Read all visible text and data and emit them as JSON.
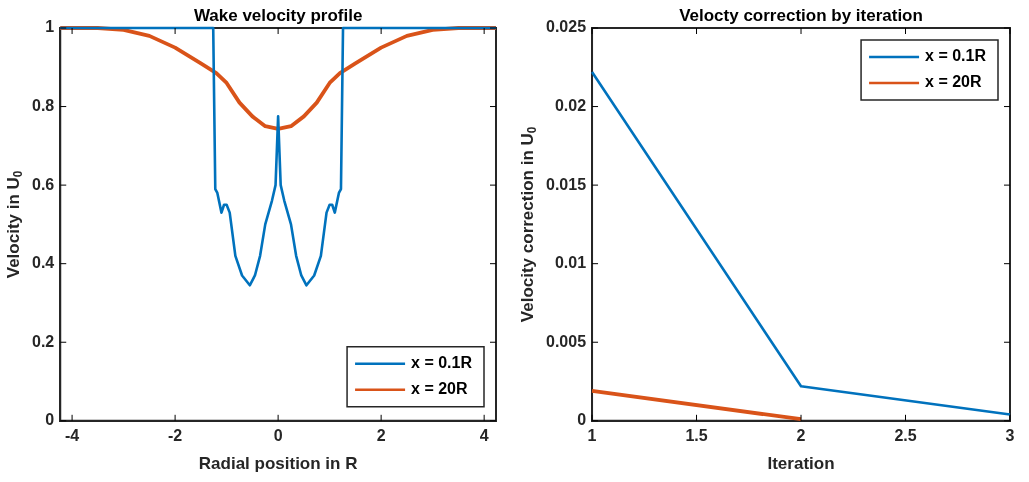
{
  "chart_data": [
    {
      "type": "line",
      "title": "Wake velocity profile",
      "xlabel": "Radial position in R",
      "ylabel": "Velocity in U$_{0}$",
      "xlim": [
        -4.23,
        4.23
      ],
      "xticks": [
        -4,
        -2,
        0,
        2,
        4
      ],
      "ylim": [
        0,
        1
      ],
      "yticks": [
        0,
        0.2,
        0.4,
        0.6,
        0.8,
        1
      ],
      "legend": "bottom right",
      "series": [
        {
          "name": "x = 0.1R",
          "color": "#0072bd",
          "x": [
            -4.23,
            -1.26,
            -1.22,
            -1.18,
            -1.1,
            -1.05,
            -1.0,
            -0.94,
            -0.83,
            -0.7,
            -0.55,
            -0.45,
            -0.35,
            -0.25,
            -0.12,
            -0.05,
            0,
            0.05,
            0.12,
            0.25,
            0.35,
            0.45,
            0.55,
            0.7,
            0.83,
            0.94,
            1.0,
            1.05,
            1.1,
            1.18,
            1.22,
            1.26,
            4.23
          ],
          "values": [
            1,
            1,
            0.59,
            0.58,
            0.53,
            0.55,
            0.55,
            0.53,
            0.42,
            0.37,
            0.345,
            0.37,
            0.42,
            0.5,
            0.56,
            0.6,
            0.775,
            0.6,
            0.56,
            0.5,
            0.42,
            0.37,
            0.345,
            0.37,
            0.42,
            0.53,
            0.55,
            0.55,
            0.53,
            0.58,
            0.59,
            1,
            1
          ]
        },
        {
          "name": "x = 20R",
          "color": "#d95319",
          "x": [
            -4.23,
            -3.5,
            -3,
            -2.5,
            -2,
            -1.5,
            -1.2,
            -1,
            -0.75,
            -0.5,
            -0.25,
            0,
            0.25,
            0.5,
            0.75,
            1,
            1.2,
            1.5,
            2,
            2.5,
            3,
            3.5,
            4.23
          ],
          "values": [
            1,
            1,
            0.995,
            0.98,
            0.95,
            0.91,
            0.885,
            0.86,
            0.81,
            0.775,
            0.75,
            0.743,
            0.75,
            0.775,
            0.81,
            0.86,
            0.885,
            0.91,
            0.95,
            0.98,
            0.995,
            1,
            1
          ]
        }
      ]
    },
    {
      "type": "line",
      "title": "Velocty correction by iteration",
      "xlabel": "Iteration",
      "ylabel": "Velocity correction in U$_{0}$",
      "xlim": [
        1,
        3
      ],
      "xticks": [
        1,
        1.5,
        2,
        2.5,
        3
      ],
      "ylim": [
        0,
        0.025
      ],
      "yticks": [
        0,
        0.005,
        0.01,
        0.015,
        0.02,
        0.025
      ],
      "legend": "top right",
      "series": [
        {
          "name": "x = 0.1R",
          "color": "#0072bd",
          "x": [
            1,
            2,
            3
          ],
          "values": [
            0.0222,
            0.0022,
            0.0004
          ]
        },
        {
          "name": "x = 20R",
          "color": "#d95319",
          "x": [
            1,
            2
          ],
          "values": [
            0.0019,
            0.0001
          ]
        }
      ]
    }
  ]
}
